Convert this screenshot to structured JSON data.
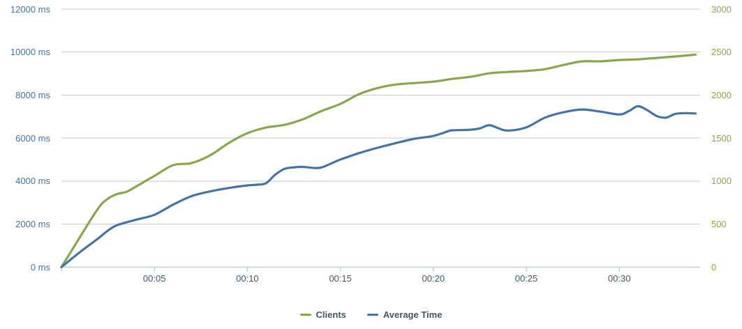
{
  "chart": {
    "grid_color": "#C8C8C8",
    "axis_line_color": "#C0D0E0",
    "background": "#FFFFFF"
  },
  "chart_data": {
    "type": "line",
    "title": "",
    "grid": true,
    "legend_position": "bottom",
    "x_axis": {
      "tick_labels": [
        "00:05",
        "00:10",
        "00:15",
        "00:20",
        "00:25",
        "00:30"
      ],
      "tick_label_minutes": [
        5,
        10,
        15,
        20,
        25,
        30
      ],
      "tick_marks_minutes": [
        0,
        5,
        10,
        15,
        20,
        25,
        30
      ],
      "range_minutes": [
        0,
        34.3
      ],
      "label_color": "#3E576F"
    },
    "y_axis_left": {
      "tick_labels": [
        "0 ms",
        "2000 ms",
        "4000 ms",
        "6000 ms",
        "8000 ms",
        "10000 ms",
        "12000 ms"
      ],
      "tick_values": [
        0,
        2000,
        4000,
        6000,
        8000,
        10000,
        12000
      ],
      "range": [
        0,
        12000
      ],
      "label_color": "#4572A7"
    },
    "y_axis_right": {
      "tick_labels": [
        "0",
        "500",
        "1000",
        "1500",
        "2000",
        "2500",
        "3000"
      ],
      "tick_values": [
        0,
        500,
        1000,
        1500,
        2000,
        2500,
        3000
      ],
      "range": [
        0,
        3000
      ],
      "label_color": "#89A54E"
    },
    "series": [
      {
        "name": "Clients",
        "axis": "right",
        "color": "#89A54E",
        "points": [
          [
            0,
            0
          ],
          [
            1,
            350
          ],
          [
            2,
            690
          ],
          [
            2.5,
            795
          ],
          [
            3,
            850
          ],
          [
            3.5,
            875
          ],
          [
            4,
            935
          ],
          [
            5,
            1060
          ],
          [
            6,
            1185
          ],
          [
            7,
            1210
          ],
          [
            8,
            1300
          ],
          [
            9,
            1443
          ],
          [
            10,
            1557
          ],
          [
            11,
            1622
          ],
          [
            12,
            1654
          ],
          [
            13,
            1720
          ],
          [
            14,
            1816
          ],
          [
            15,
            1897
          ],
          [
            16,
            2010
          ],
          [
            17,
            2082
          ],
          [
            18,
            2123
          ],
          [
            19,
            2140
          ],
          [
            20,
            2156
          ],
          [
            21,
            2188
          ],
          [
            22,
            2212
          ],
          [
            23,
            2253
          ],
          [
            24,
            2269
          ],
          [
            25,
            2280
          ],
          [
            26,
            2301
          ],
          [
            27,
            2350
          ],
          [
            28,
            2392
          ],
          [
            29,
            2392
          ],
          [
            30,
            2408
          ],
          [
            31,
            2416
          ],
          [
            32,
            2432
          ],
          [
            33,
            2449
          ],
          [
            34.1,
            2470
          ]
        ]
      },
      {
        "name": "Average Time",
        "axis": "left",
        "color": "#4572A7",
        "points": [
          [
            0,
            0
          ],
          [
            1,
            700
          ],
          [
            2,
            1350
          ],
          [
            2.5,
            1700
          ],
          [
            3,
            1950
          ],
          [
            4,
            2200
          ],
          [
            5,
            2430
          ],
          [
            6,
            2900
          ],
          [
            7,
            3300
          ],
          [
            8,
            3520
          ],
          [
            9,
            3680
          ],
          [
            10,
            3800
          ],
          [
            10.5,
            3830
          ],
          [
            11,
            3900
          ],
          [
            11.5,
            4300
          ],
          [
            12,
            4570
          ],
          [
            12.5,
            4640
          ],
          [
            13,
            4660
          ],
          [
            13.5,
            4615
          ],
          [
            14,
            4640
          ],
          [
            15,
            5000
          ],
          [
            16,
            5300
          ],
          [
            17,
            5550
          ],
          [
            18,
            5770
          ],
          [
            19,
            5970
          ],
          [
            20,
            6100
          ],
          [
            20.8,
            6320
          ],
          [
            21,
            6360
          ],
          [
            22,
            6390
          ],
          [
            22.5,
            6450
          ],
          [
            23,
            6600
          ],
          [
            23.5,
            6460
          ],
          [
            24,
            6350
          ],
          [
            25,
            6500
          ],
          [
            26,
            6950
          ],
          [
            27,
            7200
          ],
          [
            28,
            7330
          ],
          [
            29,
            7230
          ],
          [
            30,
            7100
          ],
          [
            30.5,
            7250
          ],
          [
            31,
            7480
          ],
          [
            31.5,
            7300
          ],
          [
            32,
            7030
          ],
          [
            32.5,
            6950
          ],
          [
            33,
            7120
          ],
          [
            33.5,
            7160
          ],
          [
            34.1,
            7145
          ]
        ]
      }
    ]
  }
}
